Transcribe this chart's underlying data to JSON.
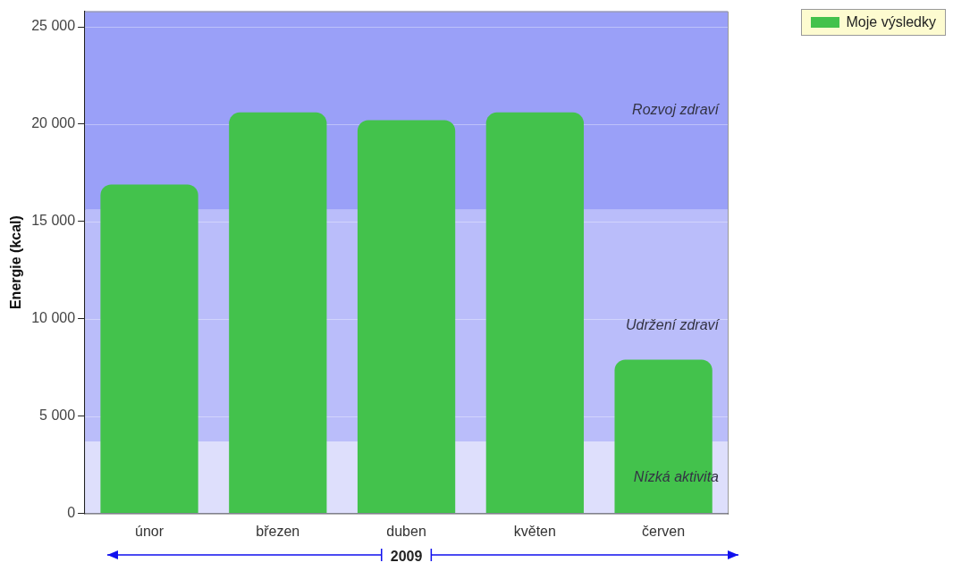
{
  "chart_data": {
    "type": "bar",
    "ylabel": "Energie (kcal)",
    "xlabel": "2009",
    "categories": [
      "únor",
      "březen",
      "duben",
      "květen",
      "červen"
    ],
    "series": [
      {
        "name": "Moje výsledky",
        "color": "#43c24c",
        "values": [
          16900,
          20600,
          20200,
          20600,
          7900
        ]
      }
    ],
    "ylim": [
      0,
      25800
    ],
    "yticks": [
      {
        "value": 0,
        "label": "0"
      },
      {
        "value": 5000,
        "label": "5 000"
      },
      {
        "value": 10000,
        "label": "10 000"
      },
      {
        "value": 15000,
        "label": "15 000"
      },
      {
        "value": 20000,
        "label": "20 000"
      },
      {
        "value": 25000,
        "label": "25 000"
      }
    ],
    "bands": [
      {
        "axis": "y",
        "from": 15600,
        "to": 25800,
        "label": "Rozvoj zdraví",
        "color": "#9aa0f8"
      },
      {
        "axis": "y",
        "from": 3700,
        "to": 15600,
        "label": "Udržení zdraví",
        "color": "#babdfa"
      },
      {
        "axis": "y",
        "from": 0,
        "to": 3700,
        "label": "Nízká aktivita",
        "color": "#dedffc"
      }
    ],
    "grid": "y",
    "legend": "top right"
  }
}
